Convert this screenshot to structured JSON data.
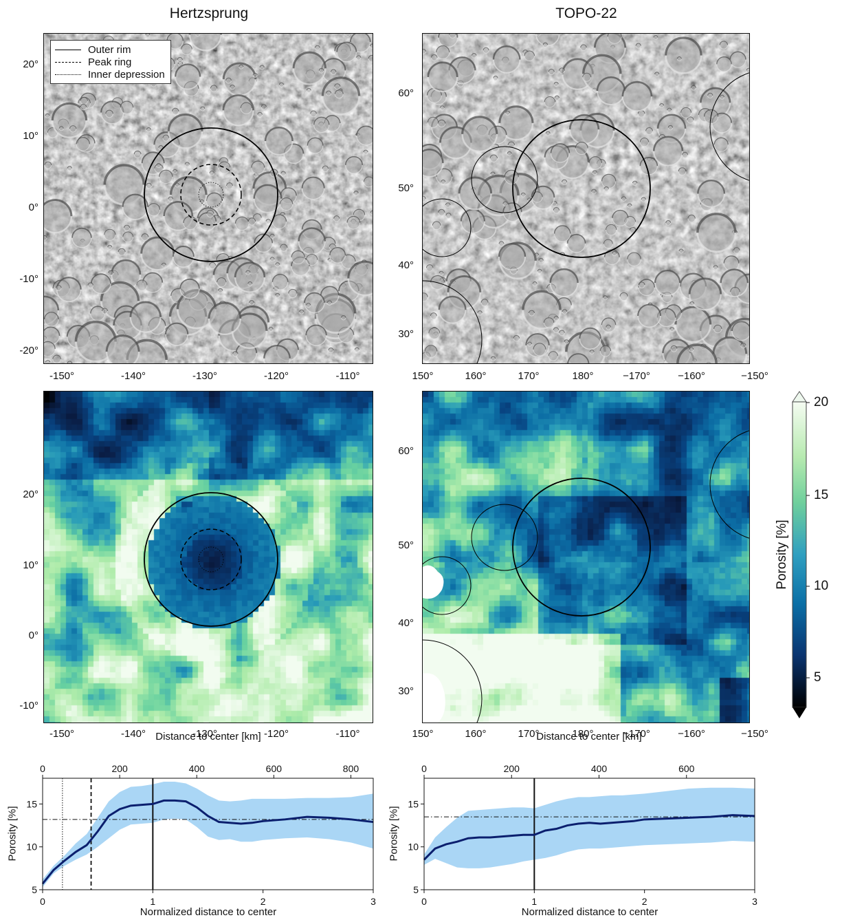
{
  "titles": {
    "left": "Hertzsprung",
    "right": "TOPO-22"
  },
  "legend": {
    "outer": "Outer rim",
    "peak": "Peak ring",
    "inner": "Inner depression"
  },
  "left_map": {
    "lat_ticks": [
      "20°",
      "10°",
      "0°",
      "-10°",
      "-20°"
    ],
    "lon_ticks": [
      "-150°",
      "-140°",
      "-130°",
      "-120°",
      "-110°"
    ]
  },
  "right_map": {
    "lat_ticks": [
      "60°",
      "50°",
      "40°",
      "30°"
    ],
    "lon_ticks": [
      "150°",
      "160°",
      "170°",
      "180°",
      "−170°",
      "−160°",
      "−150°"
    ]
  },
  "colorbar": {
    "label": "Porosity [%]",
    "ticks": [
      "20",
      "15",
      "10",
      "5"
    ],
    "range": [
      3,
      20
    ]
  },
  "profiles": {
    "top_xlabel": "Distance to center [km]",
    "bottom_xlabel": "Normalized distance to center",
    "ylabel": "Porosity [%]"
  },
  "chart_data": [
    {
      "type": "line",
      "panel": "Hertzsprung profile",
      "xlabel": "Normalized distance to center",
      "x2label": "Distance to center [km]",
      "ylabel": "Porosity [%]",
      "xlim": [
        0,
        3
      ],
      "ylim": [
        5,
        18
      ],
      "x_ticks": [
        "0",
        "1",
        "2",
        "3"
      ],
      "x2_ticks": [
        "0",
        "200",
        "400",
        "600",
        "800"
      ],
      "y_ticks": [
        "5",
        "10",
        "15"
      ],
      "reference_level": 13.2,
      "vertical_markers": {
        "inner_depression": 0.18,
        "peak_ring": 0.44,
        "outer_rim": 1.0
      },
      "series": [
        {
          "x": [
            0,
            0.1,
            0.2,
            0.3,
            0.4,
            0.5,
            0.6,
            0.7,
            0.8,
            0.9,
            1.0,
            1.1,
            1.2,
            1.3,
            1.4,
            1.5,
            1.6,
            1.7,
            1.8,
            1.9,
            2.0,
            2.2,
            2.4,
            2.6,
            2.8,
            3.0
          ],
          "y": [
            5.7,
            7.3,
            8.4,
            9.4,
            10.2,
            11.8,
            13.6,
            14.4,
            14.8,
            14.9,
            15.0,
            15.4,
            15.4,
            15.3,
            14.6,
            13.6,
            12.9,
            12.8,
            12.7,
            12.8,
            13.0,
            13.2,
            13.5,
            13.4,
            13.2,
            12.9
          ],
          "lo": [
            5.3,
            6.9,
            7.8,
            8.5,
            9.1,
            10.0,
            11.0,
            12.0,
            12.6,
            12.7,
            12.8,
            13.2,
            13.3,
            13.2,
            12.3,
            11.2,
            10.8,
            10.9,
            10.6,
            10.6,
            10.8,
            11.0,
            11.1,
            10.9,
            10.5,
            9.8
          ],
          "hi": [
            6.2,
            7.8,
            9.0,
            10.4,
            11.5,
            13.4,
            15.3,
            16.4,
            17.0,
            17.1,
            17.3,
            17.6,
            17.6,
            17.4,
            16.8,
            16.0,
            15.4,
            15.3,
            15.4,
            15.6,
            15.6,
            15.6,
            15.7,
            15.7,
            15.8,
            16.2
          ]
        }
      ]
    },
    {
      "type": "line",
      "panel": "TOPO-22 profile",
      "xlabel": "Normalized distance to center",
      "x2label": "Distance to center [km]",
      "ylabel": "Porosity [%]",
      "xlim": [
        0,
        3
      ],
      "ylim": [
        5,
        18
      ],
      "x_ticks": [
        "0",
        "1",
        "2",
        "3"
      ],
      "x2_ticks": [
        "0",
        "200",
        "400",
        "600"
      ],
      "y_ticks": [
        "5",
        "10",
        "15"
      ],
      "reference_level": 13.5,
      "vertical_markers": {
        "outer_rim": 1.0
      },
      "series": [
        {
          "x": [
            0,
            0.1,
            0.2,
            0.3,
            0.4,
            0.5,
            0.6,
            0.7,
            0.8,
            0.9,
            1.0,
            1.1,
            1.2,
            1.3,
            1.4,
            1.5,
            1.6,
            1.7,
            1.8,
            1.9,
            2.0,
            2.2,
            2.4,
            2.6,
            2.8,
            3.0
          ],
          "y": [
            8.5,
            9.8,
            10.3,
            10.6,
            11.0,
            11.1,
            11.1,
            11.2,
            11.3,
            11.4,
            11.4,
            11.9,
            12.1,
            12.5,
            12.7,
            12.8,
            12.7,
            12.8,
            12.9,
            13.0,
            13.2,
            13.3,
            13.4,
            13.5,
            13.7,
            13.6
          ],
          "lo": [
            7.9,
            8.6,
            8.1,
            7.6,
            7.5,
            7.5,
            7.6,
            7.8,
            8.0,
            8.3,
            8.5,
            8.7,
            9.0,
            9.4,
            9.7,
            9.8,
            9.8,
            9.9,
            10.0,
            10.1,
            10.2,
            10.3,
            10.4,
            10.5,
            10.7,
            10.6
          ],
          "hi": [
            9.1,
            11.1,
            12.3,
            13.4,
            14.2,
            14.3,
            14.4,
            14.5,
            14.6,
            14.6,
            14.5,
            14.9,
            15.3,
            15.6,
            15.8,
            15.8,
            15.9,
            16.0,
            16.0,
            16.1,
            16.2,
            16.5,
            16.8,
            16.9,
            16.9,
            16.8
          ]
        }
      ]
    }
  ]
}
